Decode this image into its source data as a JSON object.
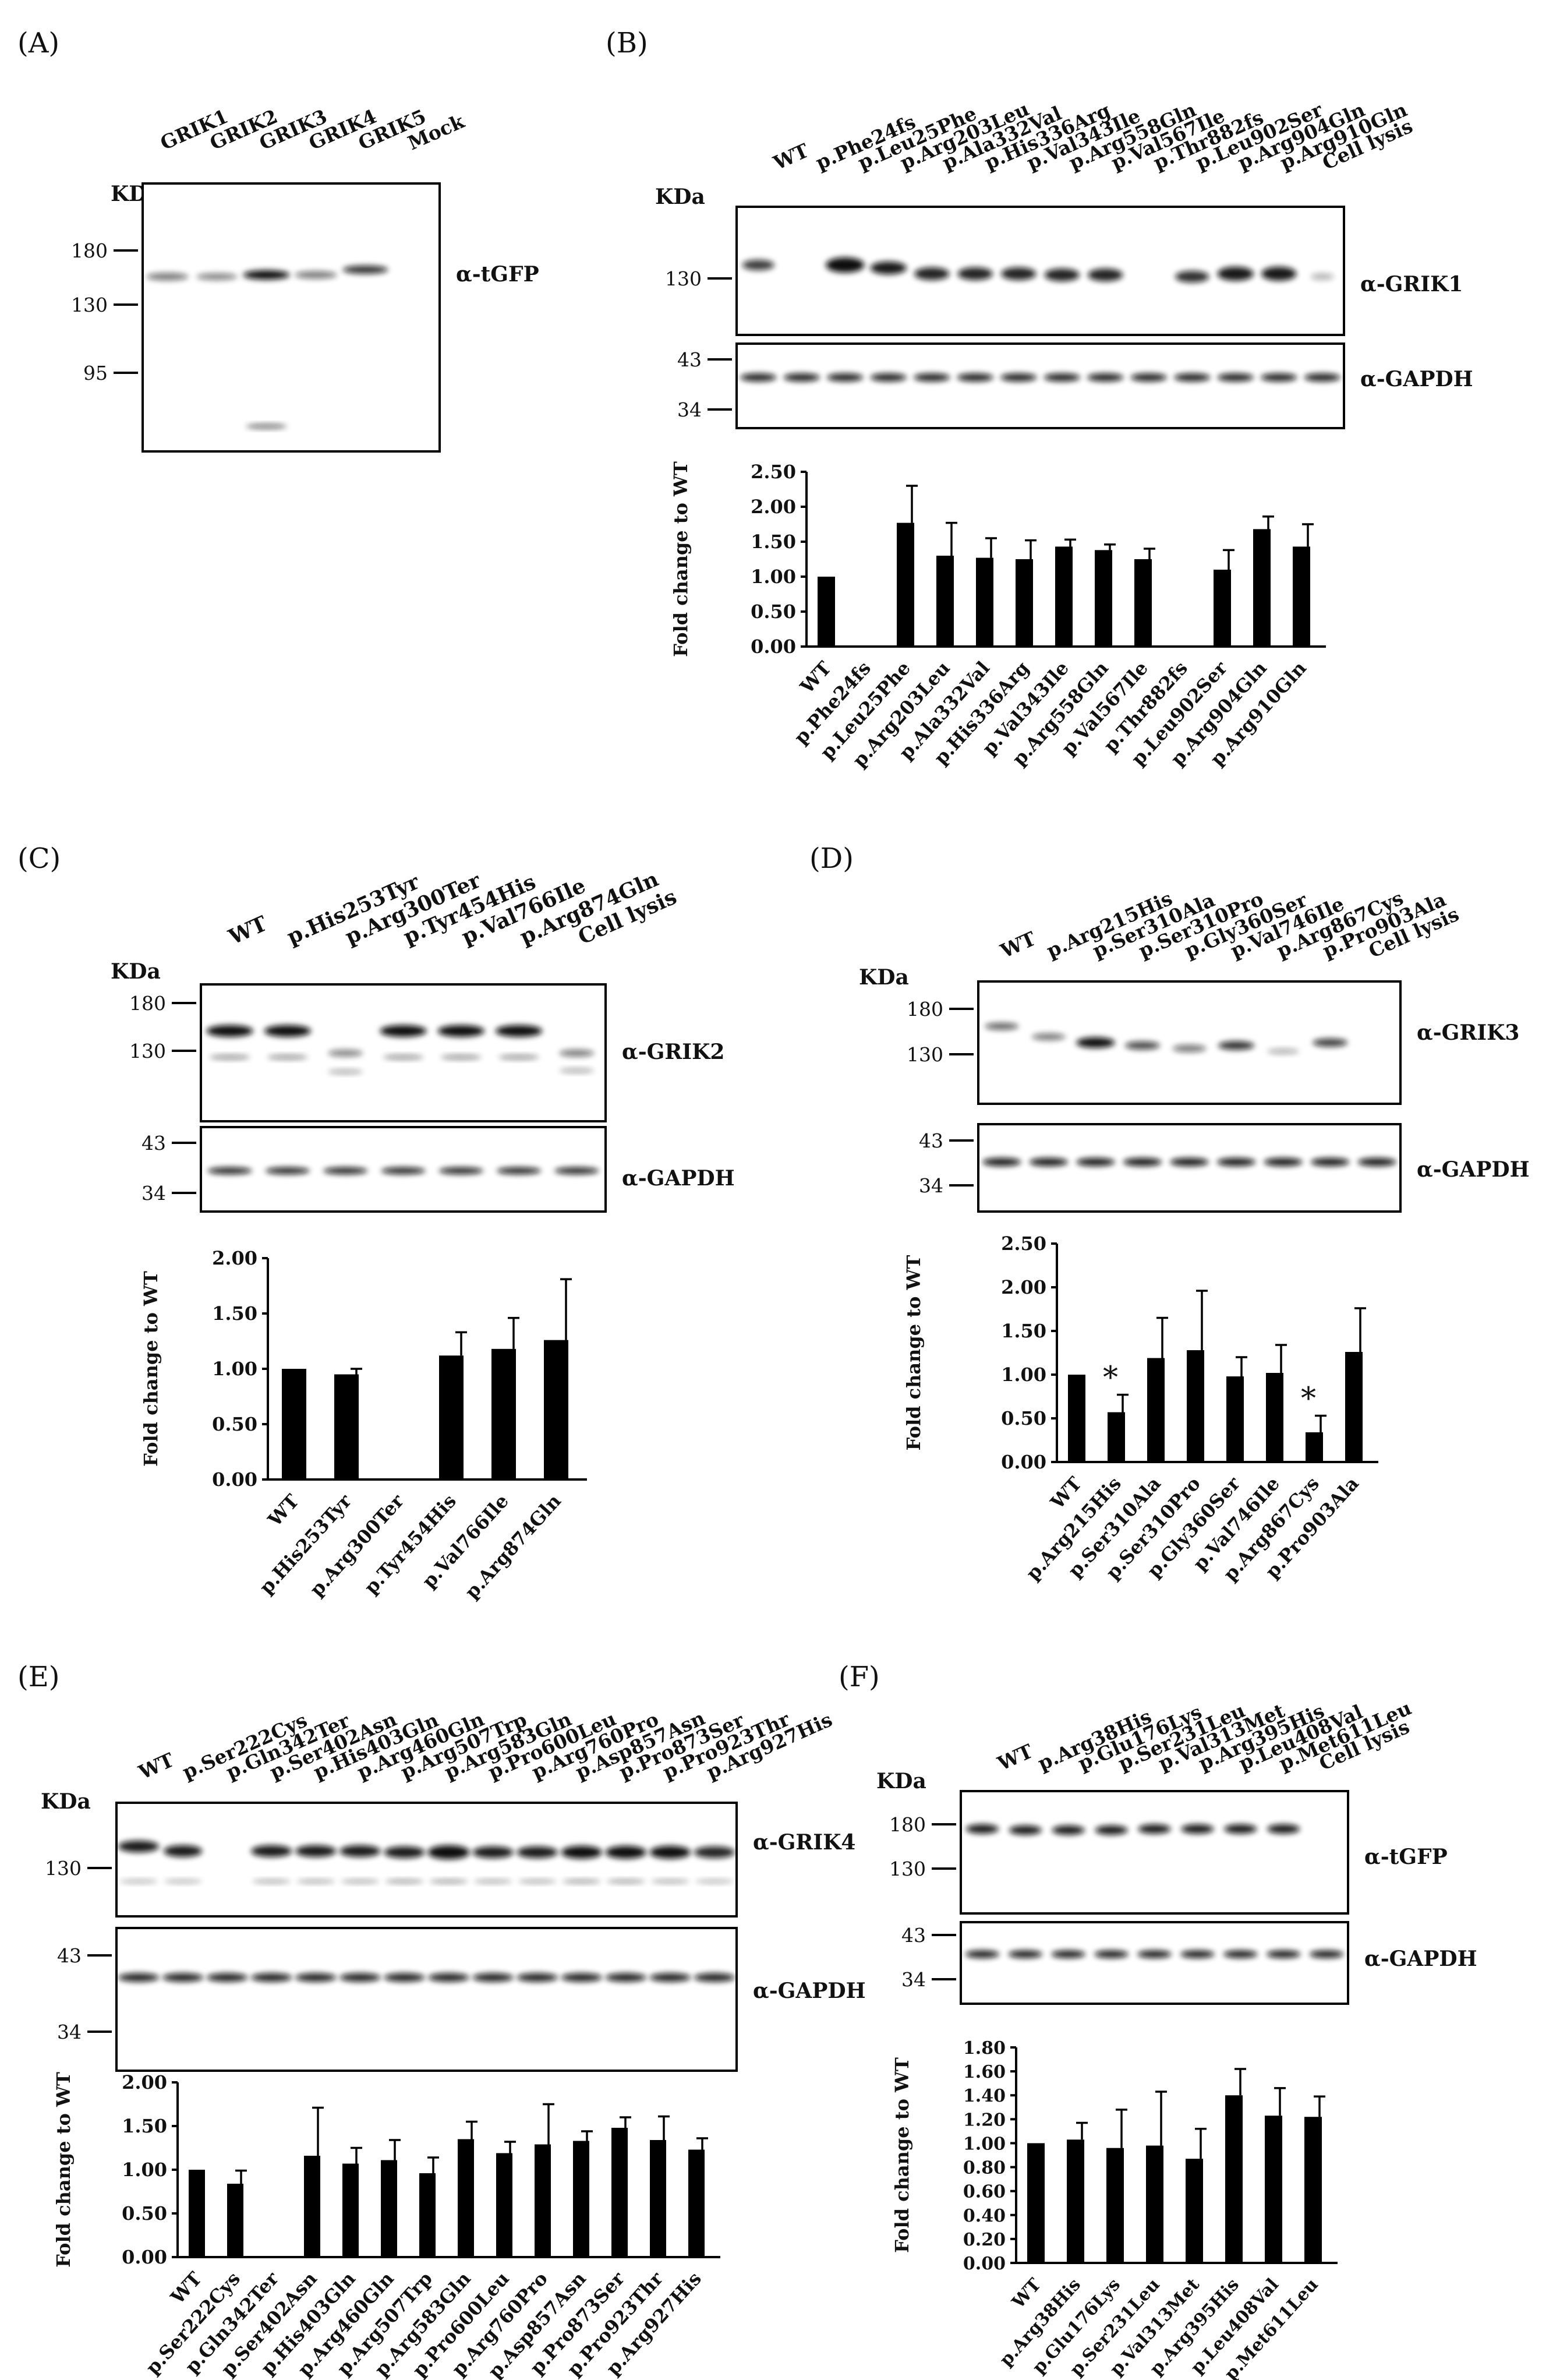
{
  "figure": {
    "panels": [
      {
        "id": "A",
        "label": "(A)",
        "kda_label": "KDa",
        "lanes": [
          "GRIK1",
          "GRIK2",
          "GRIK3",
          "GRIK4",
          "GRIK5",
          "Mock"
        ],
        "blots": [
          {
            "antibody": "α-tGFP",
            "markers": [
              "180",
              "130",
              "95"
            ]
          }
        ]
      },
      {
        "id": "B",
        "label": "(B)",
        "kda_label": "KDa",
        "lanes": [
          "WT",
          "p.Phe24fs",
          "p.Leu25Phe",
          "p.Arg203Leu",
          "p.Ala332Val",
          "p.His336Arg",
          "p.Val343Ile",
          "p.Arg558Gln",
          "p.Val567Ile",
          "p.Thr882fs",
          "p.Leu902Ser",
          "p.Arg904Gln",
          "p.Arg910Gln",
          "Cell lysis"
        ],
        "blots": [
          {
            "antibody": "α-GRIK1",
            "markers": [
              "130"
            ]
          },
          {
            "antibody": "α-GAPDH",
            "markers": [
              "43",
              "34"
            ]
          }
        ]
      },
      {
        "id": "C",
        "label": "(C)",
        "kda_label": "KDa",
        "lanes": [
          "WT",
          "p.His253Tyr",
          "p.Arg300Ter",
          "p.Tyr454His",
          "p.Val766Ile",
          "p.Arg874Gln",
          "Cell lysis"
        ],
        "blots": [
          {
            "antibody": "α-GRIK2",
            "markers": [
              "180",
              "130"
            ]
          },
          {
            "antibody": "α-GAPDH",
            "markers": [
              "43",
              "34"
            ]
          }
        ]
      },
      {
        "id": "D",
        "label": "(D)",
        "kda_label": "KDa",
        "lanes": [
          "WT",
          "p.Arg215His",
          "p.Ser310Ala",
          "p.Ser310Pro",
          "p.Gly360Ser",
          "p.Val746Ile",
          "p.Arg867Cys",
          "p.Pro903Ala",
          "Cell lysis"
        ],
        "blots": [
          {
            "antibody": "α-GRIK3",
            "markers": [
              "180",
              "130"
            ]
          },
          {
            "antibody": "α-GAPDH",
            "markers": [
              "43",
              "34"
            ]
          }
        ]
      },
      {
        "id": "E",
        "label": "(E)",
        "kda_label": "KDa",
        "lanes": [
          "WT",
          "p.Ser222Cys",
          "p.Gln342Ter",
          "p.Ser402Asn",
          "p.His403Gln",
          "p.Arg460Gln",
          "p.Arg507Trp",
          "p.Arg583Gln",
          "p.Pro600Leu",
          "p.Arg760Pro",
          "p.Asp857Asn",
          "p.Pro873Ser",
          "p.Pro923Thr",
          "p.Arg927His"
        ],
        "blots": [
          {
            "antibody": "α-GRIK4",
            "markers": [
              "130"
            ]
          },
          {
            "antibody": "α-GAPDH",
            "markers": [
              "43",
              "34"
            ]
          }
        ]
      },
      {
        "id": "F",
        "label": "(F)",
        "kda_label": "KDa",
        "lanes": [
          "WT",
          "p.Arg38His",
          "p.Glu176Lys",
          "p.Ser231Leu",
          "p.Val313Met",
          "p.Arg395His",
          "p.Leu408Val",
          "p.Met611Leu",
          "Cell lysis"
        ],
        "blots": [
          {
            "antibody": "α-tGFP",
            "markers": [
              "180",
              "130"
            ]
          },
          {
            "antibody": "α-GAPDH",
            "markers": [
              "43",
              "34"
            ]
          }
        ]
      }
    ]
  },
  "chart_data": [
    {
      "panel": "B",
      "type": "bar",
      "ylabel": "Fold change to WT",
      "ylim": [
        0,
        2.5
      ],
      "yticks": [
        "0.00",
        "0.50",
        "1.00",
        "1.50",
        "2.00",
        "2.50"
      ],
      "categories": [
        "WT",
        "p.Phe24fs",
        "p.Leu25Phe",
        "p.Arg203Leu",
        "p.Ala332Val",
        "p.His336Arg",
        "p.Val343Ile",
        "p.Arg558Gln",
        "p.Val567Ile",
        "p.Thr882fs",
        "p.Leu902Ser",
        "p.Arg904Gln",
        "p.Arg910Gln"
      ],
      "values": [
        1.0,
        null,
        1.77,
        1.3,
        1.27,
        1.25,
        1.43,
        1.38,
        1.25,
        null,
        1.1,
        1.68,
        1.43
      ],
      "errors": [
        0.02,
        null,
        0.53,
        0.47,
        0.28,
        0.27,
        0.1,
        0.08,
        0.15,
        null,
        0.28,
        0.18,
        0.32
      ],
      "significant": []
    },
    {
      "panel": "C",
      "type": "bar",
      "ylabel": "Fold change to WT",
      "ylim": [
        0,
        2.0
      ],
      "yticks": [
        "0.00",
        "0.50",
        "1.00",
        "1.50",
        "2.00"
      ],
      "categories": [
        "WT",
        "p.His253Tyr",
        "p.Arg300Ter",
        "p.Tyr454His",
        "p.Val766Ile",
        "p.Arg874Gln"
      ],
      "values": [
        1.0,
        0.95,
        null,
        1.12,
        1.18,
        1.26
      ],
      "errors": [
        0.02,
        0.05,
        null,
        0.21,
        0.28,
        0.55
      ],
      "significant": []
    },
    {
      "panel": "D",
      "type": "bar",
      "ylabel": "Fold change to WT",
      "ylim": [
        0,
        2.5
      ],
      "yticks": [
        "0.00",
        "0.50",
        "1.00",
        "1.50",
        "2.00",
        "2.50"
      ],
      "categories": [
        "WT",
        "p.Arg215His",
        "p.Ser310Ala",
        "p.Ser310Pro",
        "p.Gly360Ser",
        "p.Val746Ile",
        "p.Arg867Cys",
        "p.Pro903Ala"
      ],
      "values": [
        1.0,
        0.57,
        1.19,
        1.28,
        0.98,
        1.02,
        0.34,
        1.26
      ],
      "errors": [
        0.02,
        0.2,
        0.46,
        0.68,
        0.22,
        0.32,
        0.19,
        0.5
      ],
      "significant": [
        "",
        "*",
        "",
        "",
        "",
        "",
        "*",
        ""
      ]
    },
    {
      "panel": "E",
      "type": "bar",
      "ylabel": "Fold change to WT",
      "ylim": [
        0,
        2.0
      ],
      "yticks": [
        "0.00",
        "0.50",
        "1.00",
        "1.50",
        "2.00"
      ],
      "categories": [
        "WT",
        "p.Ser222Cys",
        "p.Gln342Ter",
        "p.Ser402Asn",
        "p.His403Gln",
        "p.Arg460Gln",
        "p.Arg507Trp",
        "p.Arg583Gln",
        "p.Pro600Leu",
        "p.Arg760Pro",
        "p.Asp857Asn",
        "p.Pro873Ser",
        "p.Pro923Thr",
        "p.Arg927His"
      ],
      "values": [
        1.0,
        0.84,
        null,
        1.16,
        1.07,
        1.11,
        0.96,
        1.35,
        1.19,
        1.29,
        1.33,
        1.48,
        1.34,
        1.23
      ],
      "errors": [
        0.02,
        0.15,
        null,
        0.55,
        0.18,
        0.23,
        0.18,
        0.2,
        0.13,
        0.46,
        0.11,
        0.12,
        0.27,
        0.13
      ],
      "significant": []
    },
    {
      "panel": "F",
      "type": "bar",
      "ylabel": "Fold change to WT",
      "ylim": [
        0,
        1.8
      ],
      "yticks": [
        "0.00",
        "0.20",
        "0.40",
        "0.60",
        "0.80",
        "1.00",
        "1.20",
        "1.40",
        "1.60",
        "1.80"
      ],
      "categories": [
        "WT",
        "p.Arg38His",
        "p.Glu176Lys",
        "p.Ser231Leu",
        "p.Val313Met",
        "p.Arg395His",
        "p.Leu408Val",
        "p.Met611Leu"
      ],
      "values": [
        1.0,
        1.03,
        0.96,
        0.98,
        0.87,
        1.4,
        1.23,
        1.22
      ],
      "errors": [
        0.02,
        0.14,
        0.32,
        0.45,
        0.25,
        0.22,
        0.23,
        0.17
      ],
      "significant": []
    }
  ]
}
